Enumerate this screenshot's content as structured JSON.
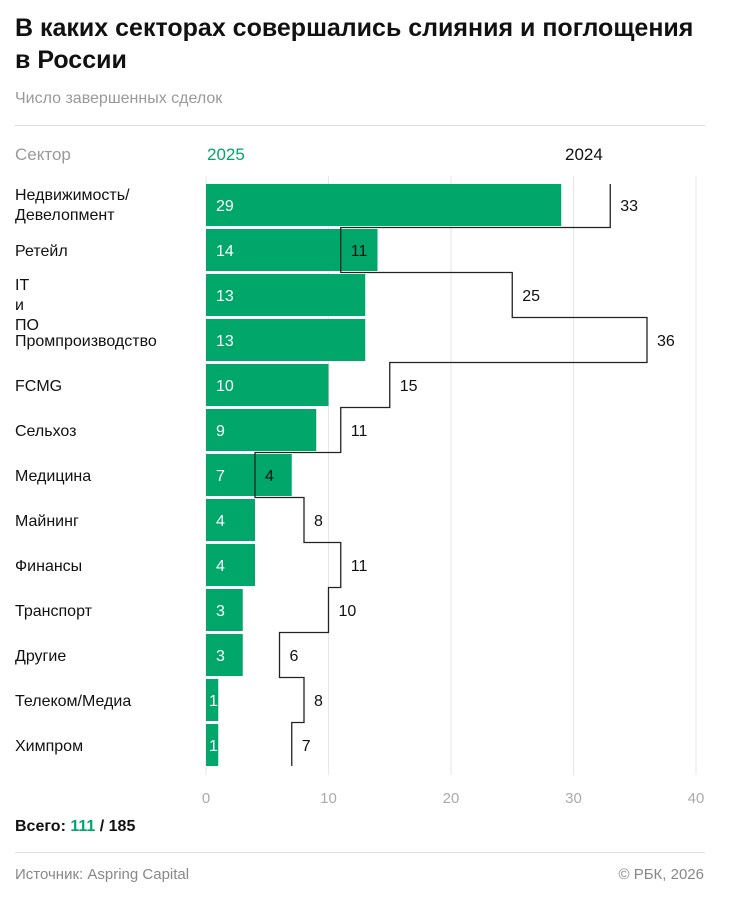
{
  "title": "В каких секторах совершались слияния и поглощения в России",
  "subtitle": "Число завершенных сделок",
  "chart_data": {
    "type": "bar",
    "title": "В каких секторах совершались слияния и поглощения в России",
    "subtitle": "Число завершенных сделок",
    "category_header": "Сектор",
    "orientation": "horizontal",
    "categories": [
      "Недвижимость/ Девелопмент",
      "Ретейл",
      "IT и ПО",
      "Промпроизводство",
      "FCMG",
      "Сельхоз",
      "Медицина",
      "Майнинг",
      "Финансы",
      "Транспорт",
      "Другие",
      "Телеком/Медиа",
      "Химпром"
    ],
    "series": [
      {
        "name": "2025",
        "style": "bar",
        "color": "#00a66a",
        "values": [
          29,
          14,
          13,
          13,
          10,
          9,
          7,
          4,
          4,
          3,
          3,
          1,
          1
        ]
      },
      {
        "name": "2024",
        "style": "step-line",
        "color": "#222222",
        "values": [
          33,
          11,
          25,
          36,
          15,
          11,
          4,
          8,
          11,
          10,
          6,
          8,
          7
        ]
      }
    ],
    "xlim": [
      0,
      40
    ],
    "xticks": [
      0,
      10,
      20,
      30,
      40
    ],
    "grid": "vertical"
  },
  "total": {
    "label": "Всего:",
    "v2025": "111",
    "sep": "/",
    "v2024": "185"
  },
  "footer": {
    "source": "Источник: Aspring Capital",
    "copyright": "© РБК, 2026"
  }
}
